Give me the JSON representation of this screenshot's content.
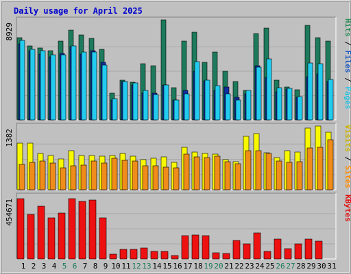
{
  "chart_data": {
    "type": "bar",
    "title": "Daily usage for April 2025",
    "x": [
      "1",
      "2",
      "3",
      "4",
      "5",
      "6",
      "7",
      "8",
      "9",
      "10",
      "11",
      "12",
      "13",
      "14",
      "15",
      "16",
      "17",
      "18",
      "19",
      "20",
      "21",
      "22",
      "23",
      "24",
      "25",
      "26",
      "27",
      "28",
      "29",
      "30",
      "31"
    ],
    "weekend_days": [
      "5",
      "6",
      "12",
      "13",
      "19",
      "20",
      "26",
      "27"
    ],
    "panels": [
      {
        "id": "hits",
        "ymax_label": "8929",
        "ymax": 8929,
        "right_label_parts": [
          {
            "text": "Hits",
            "color": "#2e8b57"
          },
          {
            "text": " / ",
            "color": "#000000"
          },
          {
            "text": "Files",
            "color": "#1e5bbf"
          },
          {
            "text": " / ",
            "color": "#000000"
          },
          {
            "text": "Pages",
            "color": "#27c3e3"
          }
        ],
        "series": [
          {
            "name": "Hits",
            "color": "#1d7a5c",
            "values": [
              7530,
              6780,
              6590,
              6320,
              7260,
              8260,
              7770,
              7470,
              6490,
              2470,
              3660,
              3480,
              5180,
              4960,
              9180,
              2930,
              7250,
              8040,
              5280,
              6220,
              4480,
              3520,
              2690,
              7900,
              8410,
              3650,
              3040,
              2750,
              8700,
              7570,
              7210
            ]
          },
          {
            "name": "Files",
            "color": "#0f2fa0",
            "values": [
              6960,
              6320,
              6060,
              5800,
              6110,
              6740,
              6060,
              6340,
              5300,
              1840,
              3540,
              3210,
              2450,
              2460,
              3210,
              1820,
              2690,
              4440,
              3570,
              2690,
              3000,
              2090,
              2390,
              4970,
              3880,
              2590,
              2850,
              2100,
              3950,
              4200,
              3530
            ]
          },
          {
            "name": "Pages",
            "color": "#22ccef",
            "values": [
              7280,
              6490,
              6330,
              5990,
              5980,
              6760,
              6230,
              6250,
              5020,
              1970,
              3490,
              3400,
              2730,
              2300,
              3190,
              1840,
              2400,
              5320,
              3670,
              3140,
              2360,
              1840,
              2720,
              4850,
              5620,
              2930,
              2890,
              2150,
              5230,
              5140,
              3720
            ]
          }
        ]
      },
      {
        "id": "visits",
        "ymax_label": "1382",
        "ymax": 1382,
        "right_label_parts": [
          {
            "text": "Visits",
            "color": "#c8b400"
          },
          {
            "text": " / ",
            "color": "#000000"
          },
          {
            "text": "Sites",
            "color": "#ff8c00"
          }
        ],
        "series": [
          {
            "name": "Visits",
            "color": "#f8f800",
            "values": [
              1050,
              1050,
              830,
              780,
              700,
              880,
              770,
              780,
              760,
              770,
              830,
              760,
              690,
              720,
              750,
              620,
              970,
              860,
              830,
              800,
              680,
              640,
              1210,
              1280,
              840,
              730,
              880,
              850,
              1400,
              1440,
              1310
            ]
          },
          {
            "name": "Sites",
            "color": "#f08c1a",
            "values": [
              580,
              620,
              650,
              600,
              500,
              550,
              560,
              650,
              610,
              720,
              670,
              650,
              550,
              540,
              510,
              500,
              800,
              740,
              730,
              760,
              630,
              590,
              880,
              880,
              820,
              650,
              620,
              630,
              950,
              970,
              1140
            ]
          }
        ]
      },
      {
        "id": "kbytes",
        "ymax_label": "454671",
        "ymax": 454671,
        "right_label_parts": [
          {
            "text": "KBytes",
            "color": "#e01010"
          }
        ],
        "series": [
          {
            "name": "KBytes",
            "color": "#ee1111",
            "values": [
              454000,
              337000,
              398000,
              310000,
              348000,
              457000,
              432000,
              443000,
              311000,
              36000,
              74000,
              71000,
              81000,
              58000,
              59000,
              28000,
              175000,
              181000,
              174000,
              47000,
              39000,
              137000,
              116000,
              194000,
              57000,
              148000,
              75000,
              114000,
              152000,
              136000,
              0
            ]
          }
        ]
      }
    ]
  }
}
